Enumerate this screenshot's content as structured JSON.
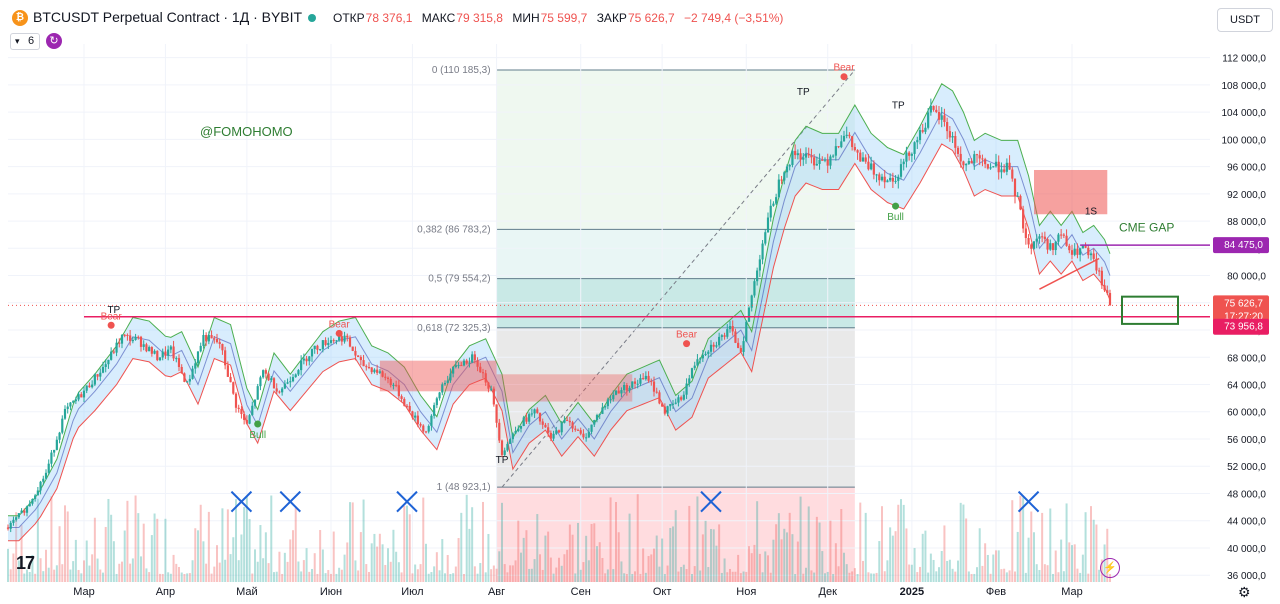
{
  "header": {
    "symbol": "BTCUSDT Perpetual Contract · 1Д · BYBIT",
    "open_label": "ОТКР",
    "open": "78 376,1",
    "high_label": "МАКС",
    "high": "79 315,8",
    "low_label": "МИН",
    "low": "75 599,7",
    "close_label": "ЗАКР",
    "close": "75 626,7",
    "change": "−2 749,4 (−3,51%)",
    "indicator_count": "6",
    "currency": "USDT",
    "logo_icon": "bitcoin-icon",
    "indicators_icon": "refresh-icon"
  },
  "watermark": "@FOMOHOMO",
  "annotations": {
    "cme_gap": "CME GAP",
    "tv_logo": "17",
    "settings_icon": "gear-icon",
    "lightning_icon": "lightning-icon"
  },
  "colors": {
    "up": "#26a69a",
    "down": "#ef5350",
    "accent": "#9c27b0",
    "hline": "#e91e63"
  },
  "chart_data": {
    "type": "candlestick",
    "title": "BTCUSDT Perpetual Contract · 1Д · BYBIT",
    "ylim": [
      35000,
      114000
    ],
    "y_ticks": [
      "112 000,0",
      "108 000,0",
      "104 000,0",
      "100 000,0",
      "96 000,0",
      "92 000,0",
      "88 000,0",
      "84 000,0",
      "80 000,0",
      "76 000,0",
      "72 000,0",
      "68 000,0",
      "64 000,0",
      "60 000,0",
      "56 000,0",
      "52 000,0",
      "48 000,0",
      "44 000,0",
      "40 000,0",
      "36 000,0"
    ],
    "y_tick_values": [
      112000,
      108000,
      104000,
      100000,
      96000,
      92000,
      88000,
      84000,
      80000,
      76000,
      72000,
      68000,
      64000,
      60000,
      56000,
      52000,
      48000,
      44000,
      40000,
      36000
    ],
    "x_ticks": [
      "Мар",
      "Апр",
      "Май",
      "Июн",
      "Июл",
      "Авг",
      "Сен",
      "Окт",
      "Ноя",
      "Дек",
      "2025",
      "Фев",
      "Мар"
    ],
    "x_tick_days": [
      28,
      58,
      88,
      119,
      149,
      180,
      211,
      241,
      272,
      302,
      333,
      364,
      392
    ],
    "price_path": [
      [
        0,
        43000
      ],
      [
        7,
        46000
      ],
      [
        14,
        51000
      ],
      [
        21,
        60000
      ],
      [
        28,
        63000
      ],
      [
        36,
        67000
      ],
      [
        42,
        71000
      ],
      [
        48,
        70500
      ],
      [
        55,
        68000
      ],
      [
        60,
        69000
      ],
      [
        66,
        64000
      ],
      [
        72,
        71000
      ],
      [
        78,
        70000
      ],
      [
        84,
        61000
      ],
      [
        88,
        58000
      ],
      [
        94,
        66000
      ],
      [
        100,
        63000
      ],
      [
        106,
        66000
      ],
      [
        112,
        69000
      ],
      [
        118,
        70500
      ],
      [
        124,
        71000
      ],
      [
        130,
        67000
      ],
      [
        136,
        66000
      ],
      [
        142,
        64000
      ],
      [
        148,
        60000
      ],
      [
        154,
        57000
      ],
      [
        160,
        64000
      ],
      [
        166,
        67000
      ],
      [
        172,
        68000
      ],
      [
        178,
        63000
      ],
      [
        182,
        54000
      ],
      [
        188,
        58000
      ],
      [
        194,
        60000
      ],
      [
        200,
        56000
      ],
      [
        206,
        59000
      ],
      [
        212,
        56000
      ],
      [
        218,
        60000
      ],
      [
        224,
        63000
      ],
      [
        230,
        64000
      ],
      [
        236,
        65000
      ],
      [
        242,
        60000
      ],
      [
        248,
        62000
      ],
      [
        254,
        68000
      ],
      [
        260,
        70000
      ],
      [
        266,
        72000
      ],
      [
        270,
        69000
      ],
      [
        274,
        77000
      ],
      [
        278,
        85000
      ],
      [
        282,
        91000
      ],
      [
        286,
        96000
      ],
      [
        290,
        98000
      ],
      [
        296,
        97000
      ],
      [
        302,
        97000
      ],
      [
        308,
        101000
      ],
      [
        314,
        97000
      ],
      [
        320,
        95000
      ],
      [
        326,
        94000
      ],
      [
        332,
        98000
      ],
      [
        336,
        101000
      ],
      [
        340,
        104000
      ],
      [
        344,
        103000
      ],
      [
        348,
        100000
      ],
      [
        352,
        96000
      ],
      [
        356,
        97000
      ],
      [
        362,
        96000
      ],
      [
        368,
        96000
      ],
      [
        372,
        91000
      ],
      [
        376,
        84000
      ],
      [
        380,
        86000
      ],
      [
        384,
        84000
      ],
      [
        388,
        86000
      ],
      [
        392,
        83000
      ],
      [
        396,
        84000
      ],
      [
        400,
        82000
      ],
      [
        404,
        78000
      ],
      [
        406,
        75626.7
      ]
    ],
    "fibonacci": [
      {
        "label": "0 (110 185,3)",
        "value": 110185.3
      },
      {
        "label": "0,382 (86 783,2)",
        "value": 86783.2
      },
      {
        "label": "0,5 (79 554,2)",
        "value": 79554.2
      },
      {
        "label": "0,618 (72 325,3)",
        "value": 72325.3
      },
      {
        "label": "1 (48 923,1)",
        "value": 48923.1
      }
    ],
    "horizontal_lines": [
      {
        "value": 73956.8,
        "label": "73 956,8",
        "color": "#e91e63"
      },
      {
        "value": 84475.0,
        "label": "84 475,0",
        "color": "#9c27b0"
      }
    ],
    "last_price": {
      "value": 75626.7,
      "label": "75 626,7",
      "countdown": "17:27:20"
    },
    "signals": [
      {
        "label": "Bear",
        "day": 38,
        "value": 72700
      },
      {
        "label": "Bear",
        "day": 122,
        "value": 71500
      },
      {
        "label": "Bull",
        "day": 92,
        "value": 58200
      },
      {
        "label": "Bear",
        "day": 250,
        "value": 70000
      },
      {
        "label": "Bear",
        "day": 308,
        "value": 109200
      },
      {
        "label": "Bull",
        "day": 327,
        "value": 90200
      }
    ],
    "tp_markers": [
      {
        "label": "TP",
        "day": 39,
        "value": 74500
      },
      {
        "label": "TP",
        "day": 293,
        "value": 106500
      },
      {
        "label": "TP",
        "day": 328,
        "value": 104500
      },
      {
        "label": "TP",
        "day": 182,
        "value": 52500
      },
      {
        "label": "1S",
        "day": 399,
        "value": 89000
      }
    ],
    "x_markers": [
      {
        "day": 86,
        "value": 46800
      },
      {
        "day": 104,
        "value": 46800
      },
      {
        "day": 147,
        "value": 46800
      },
      {
        "day": 259,
        "value": 46800
      },
      {
        "day": 376,
        "value": 46800
      }
    ],
    "volume_max": "relative"
  }
}
